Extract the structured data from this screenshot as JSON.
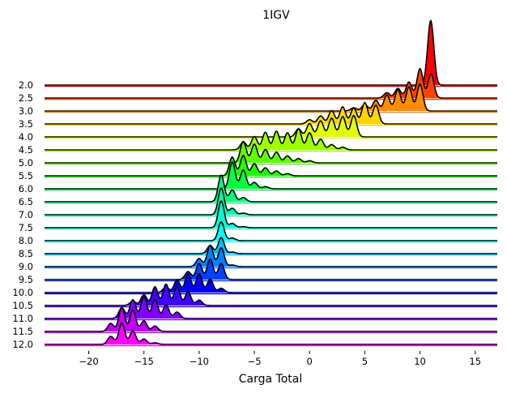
{
  "chart_data": {
    "type": "area",
    "title": "1IGV",
    "xlabel": "Carga Total",
    "ylabel": "",
    "xlim": [
      -24,
      17
    ],
    "xticks": [
      -20,
      -15,
      -10,
      -5,
      0,
      5,
      10,
      15
    ],
    "xtick_labels": [
      "−20",
      "−15",
      "−10",
      "−5",
      "0",
      "5",
      "10",
      "15"
    ],
    "grid": false,
    "ridges": [
      {
        "label": "2.0",
        "color": "#ff0000",
        "peaks": [
          [
            11.0,
            10.5
          ],
          [
            10.8,
            2.0
          ]
        ]
      },
      {
        "label": "2.5",
        "color": "#ff4000",
        "peaks": [
          [
            11.0,
            4.5
          ],
          [
            10.0,
            5.5
          ],
          [
            9.0,
            3.0
          ],
          [
            8.0,
            1.8
          ],
          [
            7.0,
            1.0
          ]
        ]
      },
      {
        "label": "3.0",
        "color": "#ff8c00",
        "peaks": [
          [
            10.0,
            5.0
          ],
          [
            9.0,
            4.5
          ],
          [
            8.0,
            4.0
          ],
          [
            7.0,
            3.0
          ],
          [
            6.0,
            2.0
          ],
          [
            5.0,
            1.2
          ],
          [
            4.0,
            0.6
          ]
        ]
      },
      {
        "label": "3.5",
        "color": "#ffd500",
        "peaks": [
          [
            6.0,
            3.5
          ],
          [
            5.0,
            4.0
          ],
          [
            4.0,
            3.0
          ],
          [
            3.0,
            3.2
          ],
          [
            2.0,
            2.5
          ],
          [
            1.0,
            1.5
          ],
          [
            0.0,
            0.8
          ]
        ]
      },
      {
        "label": "4.0",
        "color": "#e0ff00",
        "peaks": [
          [
            4.0,
            4.0
          ],
          [
            3.0,
            3.8
          ],
          [
            2.0,
            3.5
          ],
          [
            1.0,
            3.0
          ],
          [
            0.0,
            2.5
          ],
          [
            -1.0,
            1.5
          ]
        ]
      },
      {
        "label": "4.5",
        "color": "#9dff00",
        "peaks": [
          [
            -1.0,
            4.0
          ],
          [
            0.0,
            3.2
          ],
          [
            -2.0,
            3.2
          ],
          [
            -3.0,
            3.5
          ],
          [
            -4.0,
            3.3
          ],
          [
            -5.0,
            2.5
          ],
          [
            -6.0,
            1.5
          ],
          [
            1.0,
            2.0
          ],
          [
            2.0,
            1.0
          ],
          [
            3.0,
            0.5
          ]
        ]
      },
      {
        "label": "5.0",
        "color": "#5dff00",
        "peaks": [
          [
            -6.0,
            4.0
          ],
          [
            -5.0,
            3.5
          ],
          [
            -4.0,
            2.5
          ],
          [
            -3.0,
            2.0
          ],
          [
            -2.0,
            1.3
          ],
          [
            -1.0,
            0.8
          ],
          [
            0.0,
            0.4
          ]
        ]
      },
      {
        "label": "5.5",
        "color": "#1dff00",
        "peaks": [
          [
            -7.0,
            3.5
          ],
          [
            -6.0,
            3.8
          ],
          [
            -5.0,
            2.3
          ],
          [
            -4.0,
            1.5
          ],
          [
            -3.0,
            0.9
          ],
          [
            -2.0,
            0.4
          ]
        ]
      },
      {
        "label": "6.0",
        "color": "#00ff40",
        "peaks": [
          [
            -7.0,
            5.0
          ],
          [
            -6.0,
            3.5
          ],
          [
            -5.0,
            1.2
          ],
          [
            -4.0,
            0.4
          ]
        ]
      },
      {
        "label": "6.5",
        "color": "#00ff80",
        "peaks": [
          [
            -8.0,
            5.0
          ],
          [
            -7.0,
            2.2
          ],
          [
            -6.0,
            0.8
          ]
        ]
      },
      {
        "label": "7.0",
        "color": "#00ffaa",
        "peaks": [
          [
            -8.0,
            5.0
          ],
          [
            -7.0,
            1.2
          ],
          [
            -6.0,
            0.3
          ]
        ]
      },
      {
        "label": "7.5",
        "color": "#00ffd5",
        "peaks": [
          [
            -8.0,
            5.0
          ],
          [
            -7.0,
            0.8
          ],
          [
            -6.0,
            0.2
          ]
        ]
      },
      {
        "label": "8.0",
        "color": "#00ffff",
        "peaks": [
          [
            -8.0,
            3.5
          ],
          [
            -7.0,
            0.5
          ]
        ]
      },
      {
        "label": "8.5",
        "color": "#00c0ff",
        "peaks": [
          [
            -8.0,
            3.0
          ],
          [
            -9.0,
            1.5
          ],
          [
            -7.0,
            0.3
          ]
        ]
      },
      {
        "label": "9.0",
        "color": "#0080ff",
        "peaks": [
          [
            -8.0,
            3.5
          ],
          [
            -9.0,
            4.0
          ],
          [
            -10.0,
            1.5
          ],
          [
            -7.0,
            0.3
          ]
        ]
      },
      {
        "label": "9.5",
        "color": "#0040ff",
        "peaks": [
          [
            -8.0,
            3.0
          ],
          [
            -9.0,
            3.8
          ],
          [
            -10.0,
            3.0
          ],
          [
            -11.0,
            1.5
          ]
        ]
      },
      {
        "label": "10.0",
        "color": "#0000ff",
        "peaks": [
          [
            -8.0,
            0.8
          ],
          [
            -9.0,
            2.5
          ],
          [
            -10.0,
            3.5
          ],
          [
            -11.0,
            3.5
          ],
          [
            -12.0,
            2.3
          ],
          [
            -13.0,
            1.0
          ]
        ]
      },
      {
        "label": "10.5",
        "color": "#4000ff",
        "peaks": [
          [
            -10.0,
            1.0
          ],
          [
            -11.0,
            2.5
          ],
          [
            -12.0,
            3.5
          ],
          [
            -13.0,
            4.0
          ],
          [
            -14.0,
            3.5
          ],
          [
            -15.0,
            2.0
          ],
          [
            -16.0,
            0.8
          ]
        ]
      },
      {
        "label": "11.0",
        "color": "#8000ff",
        "peaks": [
          [
            -12.0,
            1.2
          ],
          [
            -13.0,
            2.5
          ],
          [
            -14.0,
            3.5
          ],
          [
            -15.0,
            4.0
          ],
          [
            -16.0,
            3.5
          ],
          [
            -17.0,
            2.0
          ]
        ]
      },
      {
        "label": "11.5",
        "color": "#c000ff",
        "peaks": [
          [
            -14.0,
            1.0
          ],
          [
            -15.0,
            2.0
          ],
          [
            -16.0,
            4.0
          ],
          [
            -17.0,
            4.5
          ],
          [
            -18.0,
            1.5
          ]
        ]
      },
      {
        "label": "12.0",
        "color": "#ff00ff",
        "peaks": [
          [
            -14.0,
            0.3
          ],
          [
            -15.0,
            1.0
          ],
          [
            -16.0,
            2.5
          ],
          [
            -17.0,
            4.0
          ],
          [
            -18.0,
            1.5
          ]
        ]
      }
    ]
  }
}
